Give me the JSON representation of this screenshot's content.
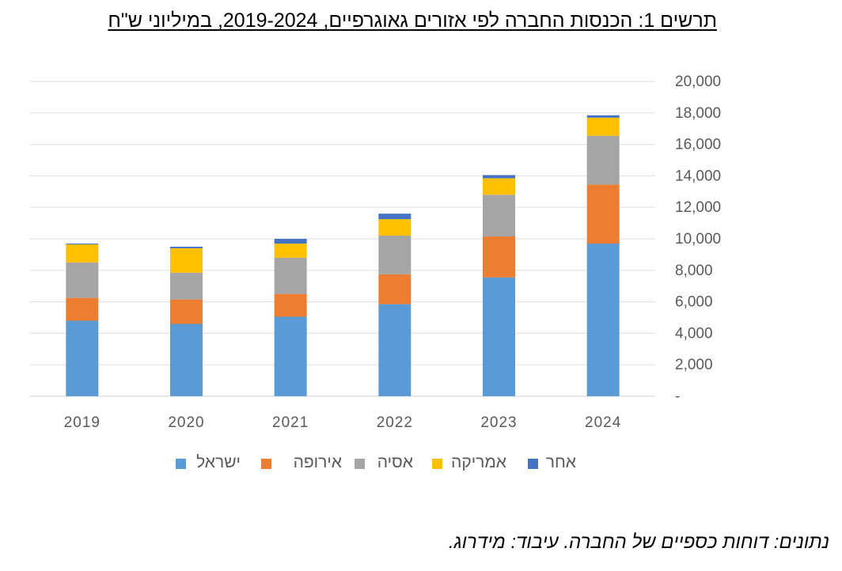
{
  "title": "תרשים 1: הכנסות החברה לפי אזורים גאוגרפיים, 2019-2024, במיליוני ש\"ח",
  "source": "נתונים: דוחות כספיים של החברה. עיבוד: מידרוג.",
  "chart_data": {
    "type": "bar",
    "stacked": true,
    "categories": [
      "2019",
      "2020",
      "2021",
      "2022",
      "2023",
      "2024"
    ],
    "series": [
      {
        "name": "ישראל",
        "color": "#5B9BD5",
        "values": [
          4800,
          4600,
          5050,
          5850,
          7550,
          9700
        ]
      },
      {
        "name": "אירופה",
        "color": "#ED7D31",
        "values": [
          1450,
          1550,
          1450,
          1900,
          2600,
          3750
        ]
      },
      {
        "name": "אסיה",
        "color": "#A5A5A5",
        "values": [
          2250,
          1700,
          2300,
          2450,
          2650,
          3100
        ]
      },
      {
        "name": "אמריקה",
        "color": "#FFC000",
        "values": [
          1150,
          1550,
          900,
          1050,
          1050,
          1150
        ]
      },
      {
        "name": "אחר",
        "color": "#4472C4",
        "values": [
          50,
          100,
          300,
          350,
          200,
          150
        ]
      }
    ],
    "y_ticks": [
      "-",
      "2,000",
      "4,000",
      "6,000",
      "8,000",
      "10,000",
      "12,000",
      "14,000",
      "16,000",
      "18,000",
      "20,000"
    ],
    "ylim": [
      0,
      20000
    ],
    "y_axis_position": "right",
    "grid": true,
    "legend_position": "bottom"
  }
}
